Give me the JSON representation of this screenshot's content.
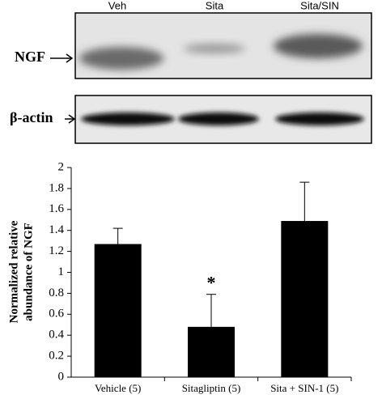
{
  "blot": {
    "lanes": [
      "Veh",
      "Sita",
      "Sita/SIN"
    ],
    "rows": [
      "NGF",
      "β-actin"
    ]
  },
  "chart_data": {
    "type": "bar",
    "ylabel": [
      "Normalized relative",
      "abundance of NGF"
    ],
    "categories": [
      "Vehicle (5)",
      "Sitagliptin (5)",
      "Sita + SIN-1 (5)"
    ],
    "values": [
      1.27,
      0.48,
      1.49
    ],
    "errors": [
      0.15,
      0.31,
      0.37
    ],
    "color": "#000000",
    "annotations": [
      {
        "category": 1,
        "text": "*"
      }
    ],
    "ylim": [
      0,
      2
    ],
    "yticks": [
      0,
      0.2,
      0.4,
      0.6,
      0.8,
      1,
      1.2,
      1.4,
      1.6,
      1.8,
      2
    ]
  }
}
